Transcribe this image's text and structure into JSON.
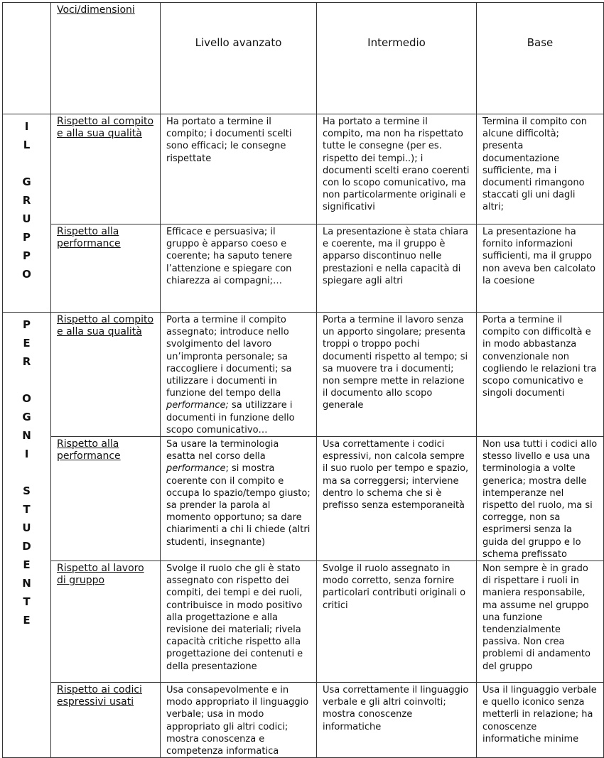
{
  "header": {
    "voci_label": "Voci/dimensioni",
    "levels": [
      "Livello avanzato",
      "Intermedio",
      "Base"
    ]
  },
  "sections": [
    {
      "label": "I\nL\n\nG\nR\nU\nP\nP\nO",
      "rows": [
        {
          "voce": "Rispetto al compito e alla sua qualità",
          "avanzato": "Ha  portato a termine il compito; i documenti scelti sono efficaci; le consegne rispettate",
          "intermedio": "Ha portato a termine il compito, ma non ha rispettato tutte le consegne (per es. rispetto dei tempi..); i documenti scelti erano coerenti con lo scopo comunicativo, ma non particolarmente originali e significativi",
          "base": "Termina il compito con alcune difficoltà; presenta documentazione sufficiente, ma i documenti rimangono staccati gli uni dagli altri;"
        },
        {
          "voce": "Rispetto alla performance",
          "avanzato": "Efficace e persuasiva; il gruppo è apparso coeso e coerente; ha saputo tenere l’attenzione e spiegare con chiarezza ai compagni;…",
          "intermedio": "La presentazione è stata chiara e coerente, ma il gruppo è apparso discontinuo nelle prestazioni e nella capacità di spiegare agli altri",
          "base": "La presentazione ha fornito informazioni sufficienti, ma il gruppo non aveva ben calcolato la coesione"
        }
      ]
    },
    {
      "label": "P\nE\nR\n\nO\nG\nN\nI\n\nS\nT\nU\nD\nE\nN\nT\nE",
      "rows": [
        {
          "voce": "Rispetto al compito e alla sua qualità",
          "avanzato_a": "Porta a termine il compito assegnato; introduce nello svolgimento del lavoro un’impronta personale; sa raccogliere i documenti; sa utilizzare i  documenti in funzione del tempo della ",
          "avanzato_em": "performance;",
          "avanzato_b": " sa utilizzare i documenti in funzione dello scopo comunicativo…",
          "intermedio": "Porta a termine il lavoro senza un apporto singolare; presenta troppi o troppo pochi documenti rispetto al tempo; si sa muovere tra i documenti; non sempre mette in relazione il documento allo scopo generale",
          "base": "Porta a termine il compito con difficoltà e in modo abbastanza convenzionale non cogliendo le relazioni tra scopo comunicativo e singoli documenti"
        },
        {
          "voce": "Rispetto alla performance",
          "avanzato_a": "Sa usare la terminologia esatta nel corso della ",
          "avanzato_em": "performance",
          "avanzato_b": "; si mostra coerente con il compito e occupa lo spazio/tempo giusto; sa prender la parola al momento opportuno; sa dare chiarimenti a chi li chiede (altri studenti, insegnante)",
          "intermedio": "Usa correttamente i codici espressivi, non calcola sempre il suo ruolo per tempo e spazio, ma sa correggersi; interviene dentro lo schema che si è prefisso senza estemporaneità",
          "base": "Non usa tutti i codici allo stesso livello e usa una terminologia a volte generica; mostra delle intemperanze nel rispetto del ruolo, ma si corregge, non sa esprimersi senza la guida del gruppo e lo schema prefissato"
        },
        {
          "voce": "Rispetto al lavoro di gruppo",
          "avanzato": "Svolge il ruolo che gli è stato assegnato con rispetto dei compiti, dei tempi e dei ruoli, contribuisce in modo positivo alla progettazione e alla revisione dei materiali; rivela capacità critiche rispetto alla progettazione dei contenuti e della presentazione",
          "intermedio": "Svolge il ruolo assegnato in modo corretto, senza fornire particolari contributi originali o critici",
          "base": "Non sempre è in grado di rispettare i ruoli in maniera responsabile, ma assume nel gruppo una funzione tendenzialmente passiva. Non crea problemi di andamento del gruppo"
        },
        {
          "voce": "Rispetto ai codici espressivi usati",
          "avanzato": "Usa consapevolmente e in modo appropriato il linguaggio verbale; usa in modo appropriato gli altri codici; mostra conoscenza e competenza informatica",
          "intermedio": "Usa correttamente il linguaggio verbale e gli altri coinvolti; mostra conoscenze informatiche",
          "base": "Usa il linguaggio verbale e quello iconico senza metterli in relazione; ha conoscenze informatiche minime"
        }
      ]
    }
  ]
}
